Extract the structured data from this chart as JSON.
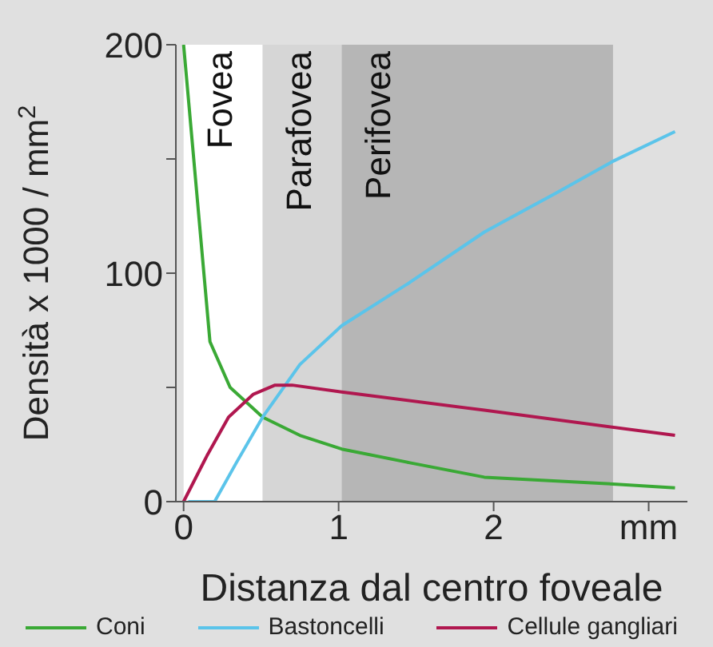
{
  "chart_data": {
    "type": "line",
    "xlabel": "Distanza dal centro foveale",
    "ylabel": "Densità x 1000 / mm$^{2}$",
    "xlim": [
      -0.05,
      3.25
    ],
    "xticks": [
      0,
      1,
      2,
      {
        "value": 3,
        "label": "mm"
      }
    ],
    "ylim": [
      0,
      200
    ],
    "yticks": [
      0,
      {
        "value": 50,
        "label": null
      },
      100,
      {
        "value": 150,
        "label": null
      },
      200
    ],
    "legend": "bottom",
    "marker": "none",
    "line_style": "solid",
    "bands": [
      {
        "axis": "x",
        "from": 0,
        "to": 0.51,
        "label": "Fovea",
        "color": "#ffffff"
      },
      {
        "axis": "x",
        "from": 0.51,
        "to": 1.02,
        "label": "Parafovea",
        "color": "#d6d6d6"
      },
      {
        "axis": "x",
        "from": 1.02,
        "to": 2.77,
        "label": "Perifovea",
        "color": "#b6b6b6"
      }
    ],
    "series": [
      {
        "name": "Coni",
        "color": "#3aa935",
        "x": [
          0,
          0.17,
          0.3,
          0.51,
          0.75,
          1.02,
          1.46,
          1.94,
          2.77,
          3.17
        ],
        "values": [
          200,
          70,
          50,
          37,
          29,
          23,
          17,
          10.7,
          7.7,
          6
        ]
      },
      {
        "name": "Bastoncelli",
        "color": "#5bc4ea",
        "x": [
          0.03,
          0.2,
          0.34,
          0.51,
          0.75,
          1.02,
          1.46,
          1.94,
          2.4,
          2.77,
          3.17
        ],
        "values": [
          0,
          0,
          17,
          37,
          60,
          77,
          96,
          118,
          135,
          149,
          162
        ]
      },
      {
        "name": "Cellule gangliari",
        "color": "#b0174f",
        "x": [
          0,
          0.15,
          0.29,
          0.45,
          0.59,
          0.7,
          1.02,
          1.94,
          3.17
        ],
        "values": [
          0,
          20,
          37,
          47,
          51,
          51,
          48,
          40,
          29
        ]
      }
    ]
  }
}
